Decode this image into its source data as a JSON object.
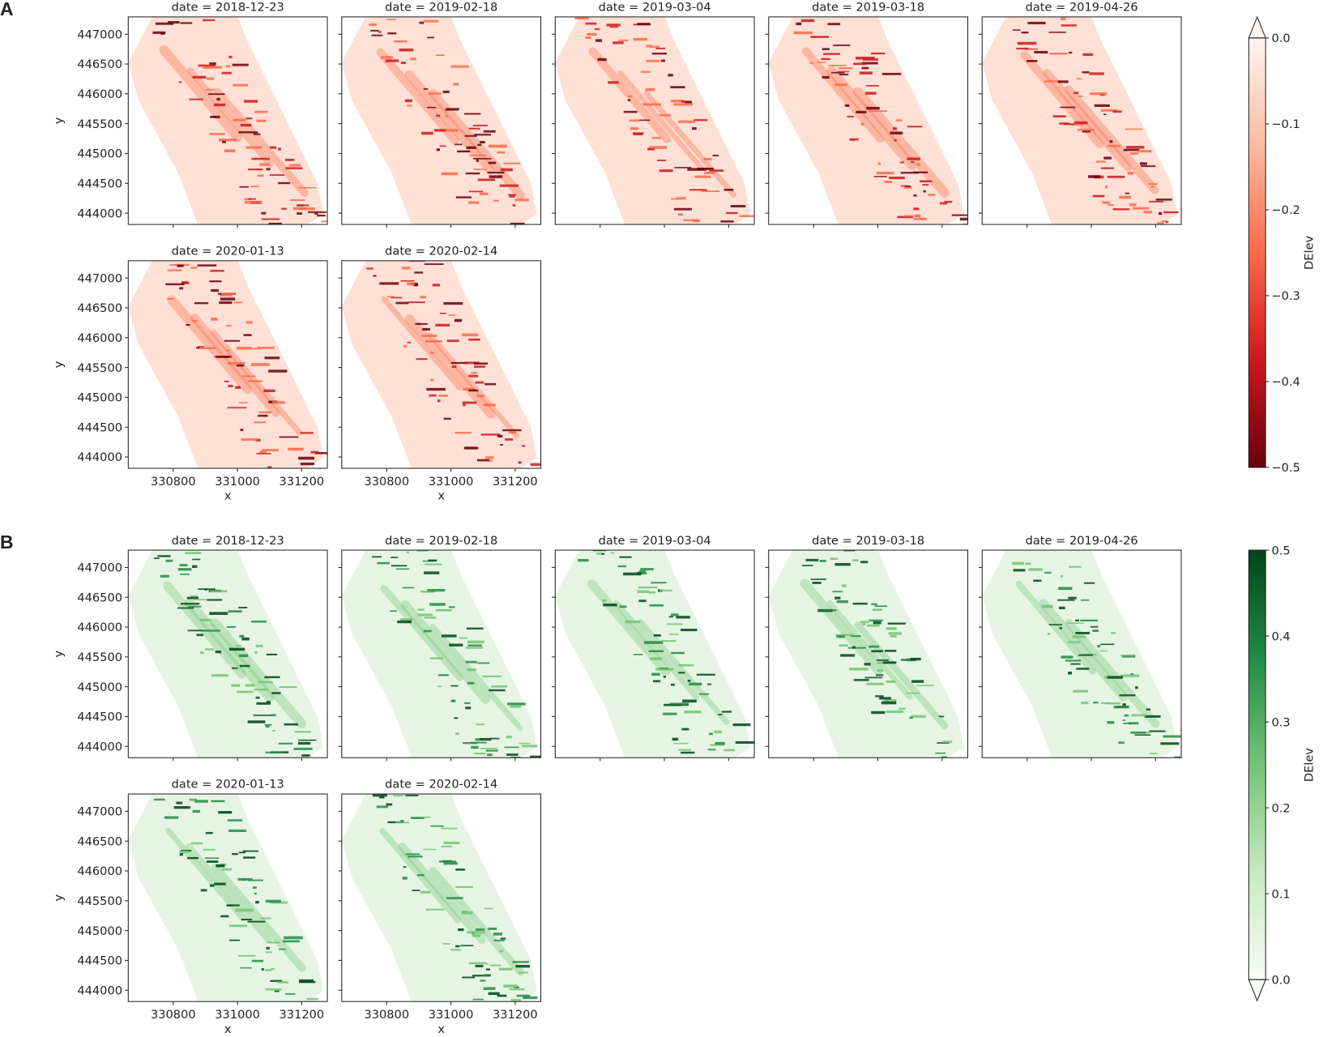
{
  "chart_data": [
    {
      "type": "heatmap",
      "panel_label": "A",
      "xlabel": "x",
      "ylabel": "y",
      "facets": [
        "date = 2018-12-23",
        "date = 2019-02-18",
        "date = 2019-03-04",
        "date = 2019-03-18",
        "date = 2019-04-26",
        "date = 2020-01-13",
        "date = 2020-02-14"
      ],
      "xlim": [
        330660,
        331280
      ],
      "ylim": [
        443810,
        447290
      ],
      "xticks": [
        330800,
        331000,
        331200
      ],
      "yticks": [
        444000,
        444500,
        445000,
        445500,
        446000,
        446500,
        447000
      ],
      "colorbar": {
        "label": "DElev",
        "lim": [
          -0.5,
          0.0
        ],
        "extend": "max",
        "colors": [
          "#67000d",
          "#cb181d",
          "#fb6a4a",
          "#fcbba1",
          "#fff5f0"
        ],
        "ticks": [
          {
            "value": 0.0,
            "label": "0.0"
          },
          {
            "value": -0.1,
            "label": "−0.1"
          },
          {
            "value": -0.2,
            "label": "−0.2"
          },
          {
            "value": -0.3,
            "label": "−0.3"
          },
          {
            "value": -0.4,
            "label": "−0.4"
          },
          {
            "value": -0.5,
            "label": "−0.5"
          }
        ]
      }
    },
    {
      "type": "heatmap",
      "panel_label": "B",
      "xlabel": "x",
      "ylabel": "y",
      "facets": [
        "date = 2018-12-23",
        "date = 2019-02-18",
        "date = 2019-03-04",
        "date = 2019-03-18",
        "date = 2019-04-26",
        "date = 2020-01-13",
        "date = 2020-02-14"
      ],
      "xlim": [
        330660,
        331280
      ],
      "ylim": [
        443810,
        447290
      ],
      "xticks": [
        330800,
        331000,
        331200
      ],
      "yticks": [
        444000,
        444500,
        445000,
        445500,
        446000,
        446500,
        447000
      ],
      "colorbar": {
        "label": "DElev",
        "lim": [
          0.0,
          0.5
        ],
        "extend": "min",
        "colors": [
          "#f7fcf5",
          "#c7e9c0",
          "#74c476",
          "#238b45",
          "#00441b"
        ],
        "ticks": [
          {
            "value": 0.0,
            "label": "0.0"
          },
          {
            "value": 0.1,
            "label": "0.1"
          },
          {
            "value": 0.2,
            "label": "0.2"
          },
          {
            "value": 0.3,
            "label": "0.3"
          },
          {
            "value": 0.4,
            "label": "0.4"
          },
          {
            "value": 0.5,
            "label": "0.5"
          }
        ]
      }
    }
  ]
}
